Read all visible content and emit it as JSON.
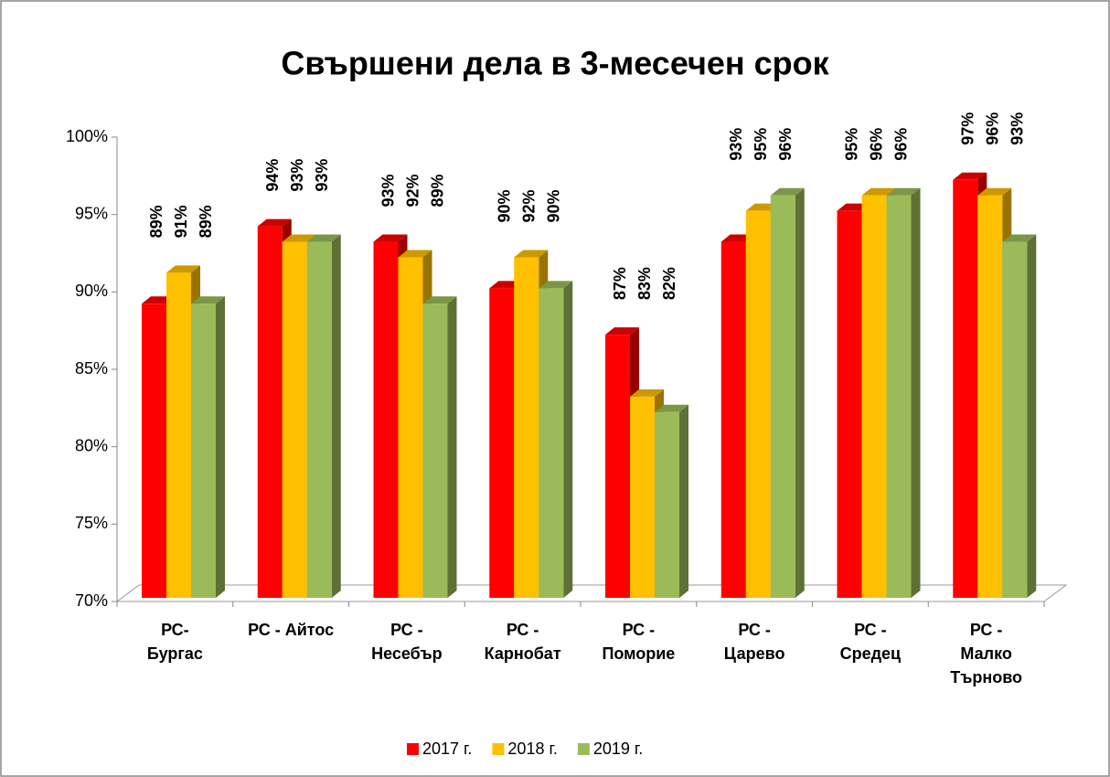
{
  "chart_data": {
    "type": "bar3d",
    "title": "Свършени дела в 3-месечен срок",
    "categories": [
      "РС-\nБургас",
      "РС - Айтос",
      "РС -\nНесебър",
      "РС -\nКарнобат",
      "РС -\nПоморие",
      "РС -\nЦарево",
      "РС -\nСредец",
      "РС -\nМалко\nТърново"
    ],
    "series": [
      {
        "name": "2017 г.",
        "color": "#ff0000",
        "values": [
          89,
          94,
          93,
          90,
          87,
          93,
          95,
          97
        ],
        "value_labels": [
          "89%",
          "94%",
          "93%",
          "90%",
          "87%",
          "93%",
          "95%",
          "97%"
        ]
      },
      {
        "name": "2018 г.",
        "color": "#ffc000",
        "values": [
          91,
          93,
          92,
          92,
          83,
          95,
          96,
          96
        ],
        "value_labels": [
          "91%",
          "93%",
          "92%",
          "92%",
          "83%",
          "95%",
          "96%",
          "96%"
        ]
      },
      {
        "name": "2019 г.",
        "color": "#9bbb59",
        "values": [
          89,
          93,
          89,
          90,
          82,
          96,
          96,
          93
        ],
        "value_labels": [
          "89%",
          "93%",
          "89%",
          "90%",
          "82%",
          "96%",
          "96%",
          "93%"
        ]
      }
    ],
    "ylim": [
      70,
      100
    ],
    "yticks": [
      {
        "value": 70,
        "label": "70%"
      },
      {
        "value": 75,
        "label": "75%"
      },
      {
        "value": 80,
        "label": "80%"
      },
      {
        "value": 85,
        "label": "85%"
      },
      {
        "value": 90,
        "label": "90%"
      },
      {
        "value": 95,
        "label": "95%"
      },
      {
        "value": 100,
        "label": "100%"
      }
    ],
    "legend": "bottom"
  }
}
